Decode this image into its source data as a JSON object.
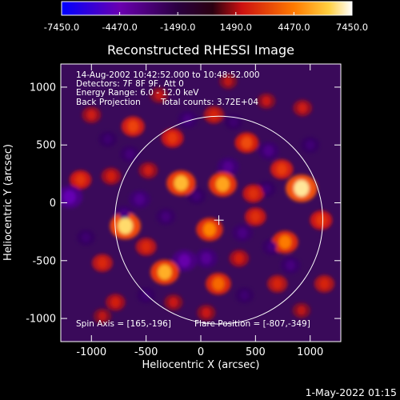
{
  "colorbar": {
    "ticks": [
      "-7450.0",
      "-4470.0",
      "-1490.0",
      "1490.0",
      "4470.0",
      "7450.0"
    ],
    "tick_values": [
      -7450,
      -4470,
      -1490,
      1490,
      4470,
      7450
    ],
    "range": [
      -7450,
      7450
    ],
    "colors": [
      "#0000ff",
      "#6a00b0",
      "#3a0060",
      "#cc1010",
      "#ff7a00",
      "#ffffff"
    ]
  },
  "chart_data": {
    "type": "heatmap",
    "title": "Reconstructed RHESSI Image",
    "xlabel": "Heliocentric X (arcsec)",
    "ylabel": "Heliocentric Y (arcsec)",
    "xlim": [
      -1280,
      1280
    ],
    "ylim": [
      -1200,
      1200
    ],
    "xticks": [
      -1000,
      -500,
      0,
      500,
      1000
    ],
    "yticks": [
      -1000,
      -500,
      0,
      500,
      1000
    ],
    "xtick_labels": [
      "-1000",
      "-500",
      "0",
      "500",
      "1000"
    ],
    "ytick_labels": [
      "-1000",
      "-500",
      "0",
      "500",
      "1000"
    ],
    "solar_limb_radius": 950,
    "map_center": [
      165,
      -150
    ],
    "blobs": [
      {
        "x": 920,
        "y": 125,
        "value": 6800
      },
      {
        "x": -690,
        "y": -200,
        "value": 6500
      },
      {
        "x": -180,
        "y": 170,
        "value": 5800
      },
      {
        "x": 200,
        "y": 160,
        "value": 5400
      },
      {
        "x": -330,
        "y": -600,
        "value": 5600
      },
      {
        "x": 80,
        "y": -230,
        "value": 4800
      },
      {
        "x": 770,
        "y": -340,
        "value": 4600
      },
      {
        "x": 160,
        "y": -700,
        "value": 4200
      },
      {
        "x": 420,
        "y": 520,
        "value": 3600
      },
      {
        "x": -620,
        "y": 660,
        "value": 3400
      },
      {
        "x": 740,
        "y": 290,
        "value": 3200
      },
      {
        "x": -260,
        "y": 560,
        "value": 3000
      },
      {
        "x": 1100,
        "y": -150,
        "value": 3000
      },
      {
        "x": -1100,
        "y": 200,
        "value": 2800
      },
      {
        "x": 480,
        "y": 80,
        "value": 2600
      },
      {
        "x": 500,
        "y": -120,
        "value": 2600
      },
      {
        "x": -500,
        "y": -380,
        "value": 2400
      },
      {
        "x": -900,
        "y": -520,
        "value": 2400
      },
      {
        "x": 700,
        "y": -700,
        "value": 2200
      },
      {
        "x": 1130,
        "y": -700,
        "value": 2200
      },
      {
        "x": -780,
        "y": -860,
        "value": 2000
      },
      {
        "x": 120,
        "y": 760,
        "value": 2200
      },
      {
        "x": -820,
        "y": 230,
        "value": 2000
      },
      {
        "x": 350,
        "y": -480,
        "value": 2000
      },
      {
        "x": 930,
        "y": 820,
        "value": 1800
      },
      {
        "x": -480,
        "y": 280,
        "value": 1800
      },
      {
        "x": -1000,
        "y": 760,
        "value": 1800
      },
      {
        "x": 50,
        "y": -950,
        "value": 1600
      },
      {
        "x": -250,
        "y": -860,
        "value": 1600
      },
      {
        "x": 600,
        "y": 880,
        "value": 1500
      },
      {
        "x": -380,
        "y": 930,
        "value": 1500
      },
      {
        "x": 250,
        "y": 1050,
        "value": 1400
      },
      {
        "x": -900,
        "y": -980,
        "value": 1400
      },
      {
        "x": 920,
        "y": -930,
        "value": 1400
      },
      {
        "x": -150,
        "y": -500,
        "value": -4200
      },
      {
        "x": -1200,
        "y": 50,
        "value": -4600
      },
      {
        "x": 50,
        "y": -480,
        "value": -3200
      },
      {
        "x": 250,
        "y": 310,
        "value": -3000
      },
      {
        "x": -560,
        "y": 30,
        "value": -2800
      },
      {
        "x": 620,
        "y": 450,
        "value": -2600
      },
      {
        "x": -700,
        "y": -100,
        "value": -2400
      },
      {
        "x": 380,
        "y": -260,
        "value": -2400
      },
      {
        "x": -120,
        "y": 720,
        "value": -2200
      },
      {
        "x": 820,
        "y": -540,
        "value": -2200
      },
      {
        "x": -320,
        "y": -120,
        "value": -2000
      },
      {
        "x": 650,
        "y": -380,
        "value": -2000
      },
      {
        "x": -650,
        "y": 420,
        "value": -2000
      },
      {
        "x": -40,
        "y": 60,
        "value": -1800
      },
      {
        "x": 600,
        "y": 120,
        "value": -1800
      },
      {
        "x": 1000,
        "y": 500,
        "value": -1800
      },
      {
        "x": -850,
        "y": 550,
        "value": -1600
      },
      {
        "x": 400,
        "y": -800,
        "value": -1600
      },
      {
        "x": -500,
        "y": -800,
        "value": -1600
      },
      {
        "x": -1050,
        "y": -300,
        "value": -1600
      },
      {
        "x": 300,
        "y": 700,
        "value": -1600
      }
    ],
    "spin_axis": "Spin Axis = [165,-196]",
    "flare_position": "Flare Position = [-807,-349]",
    "annotations": [
      "14-Aug-2002 10:42:52.000 to 10:48:52.000",
      "Detectors: 7F 8F 9F, Att 0",
      "Energy Range: 6.0 - 12.0 keV",
      "Back Projection",
      "Total counts: 3.72E+04"
    ]
  },
  "footer": {
    "timestamp": "1-May-2022 01:15"
  }
}
